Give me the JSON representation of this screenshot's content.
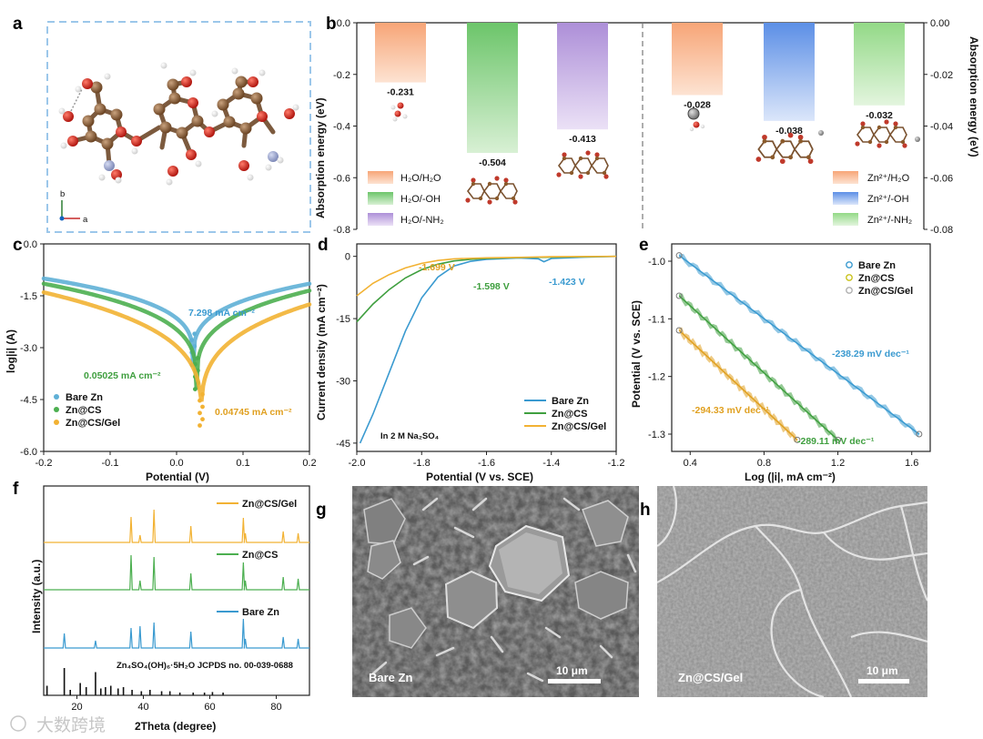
{
  "panels": {
    "a": "a",
    "b": "b",
    "c": "c",
    "d": "d",
    "e": "e",
    "f": "f",
    "g": "g",
    "h": "h"
  },
  "watermark": "大数跨境",
  "chart_data": [
    {
      "id": "a",
      "type": "other",
      "title": "Chitosan molecular structure (ball-and-stick)",
      "axes": [
        "b",
        "c",
        "a"
      ]
    },
    {
      "id": "b",
      "type": "bar",
      "ylabel_left": "Absorption energy (eV)",
      "ylabel_right": "Absorption energy (eV)",
      "ylim_left": [
        -0.8,
        0.0
      ],
      "yticks_left": [
        "0.0",
        "-0.2",
        "-0.4",
        "-0.6",
        "-0.8"
      ],
      "ylim_right": [
        -0.08,
        0.0
      ],
      "yticks_right": [
        "0.00",
        "-0.02",
        "-0.04",
        "-0.06",
        "-0.08"
      ],
      "left_series": [
        {
          "name": "H₂O/H₂O",
          "value": -0.231,
          "label": "-0.231",
          "color": "#f5b48a"
        },
        {
          "name": "H₂O/-OH",
          "value": -0.504,
          "label": "-0.504",
          "color": "#8fd08a"
        },
        {
          "name": "H₂O/-NH₂",
          "value": -0.413,
          "label": "-0.413",
          "color": "#c3aedf"
        }
      ],
      "right_series": [
        {
          "name": "Zn²⁺/H₂O",
          "value": -0.028,
          "label": "-0.028",
          "color": "#f5b48a"
        },
        {
          "name": "Zn²⁺/-OH",
          "value": -0.038,
          "label": "-0.038",
          "color": "#7aa6ea"
        },
        {
          "name": "Zn²⁺/-NH₂",
          "value": -0.032,
          "label": "-0.032",
          "color": "#a8dd98"
        }
      ],
      "legend_left": [
        "H₂O/H₂O",
        "H₂O/-OH",
        "H₂O/-NH₂"
      ],
      "legend_right": [
        "Zn²⁺/H₂O",
        "Zn²⁺/-OH",
        "Zn²⁺/-NH₂"
      ]
    },
    {
      "id": "c",
      "type": "scatter",
      "xlabel": "Potential (V)",
      "ylabel": "log|i| (A)",
      "xlim": [
        -0.2,
        0.2
      ],
      "ylim": [
        -6.0,
        0.0
      ],
      "xticks": [
        "-0.2",
        "-0.1",
        "0.0",
        "0.1",
        "0.2"
      ],
      "yticks": [
        "0.0",
        "-1.5",
        "-3.0",
        "-4.5",
        "-6.0"
      ],
      "series": [
        {
          "name": "Bare Zn",
          "color": "#5fb0d6",
          "ecorr": 0.025,
          "ends": [
            -1.0,
            -1.15
          ],
          "min": -3.5
        },
        {
          "name": "Zn@CS",
          "color": "#4caf50",
          "ecorr": 0.03,
          "ends": [
            -1.15,
            -1.35
          ],
          "min": -4.2
        },
        {
          "name": "Zn@CS/Gel",
          "color": "#f2b233",
          "ecorr": 0.037,
          "ends": [
            -1.4,
            -1.75
          ],
          "min": -5.25
        }
      ],
      "annotations": [
        {
          "text": "7.298 mA cm⁻²",
          "color": "#3a9ad0"
        },
        {
          "text": "0.05025 mA cm⁻²",
          "color": "#3f9f3f"
        },
        {
          "text": "0.04745 mA cm⁻²",
          "color": "#e0a020"
        }
      ]
    },
    {
      "id": "d",
      "type": "line",
      "xlabel": "Potential (V vs. SCE)",
      "ylabel": "Current density (mA cm⁻²)",
      "xlim": [
        -2.0,
        -1.2
      ],
      "ylim": [
        -47,
        3
      ],
      "xticks": [
        "-2.0",
        "-1.8",
        "-1.6",
        "-1.4",
        "-1.2"
      ],
      "yticks": [
        "0",
        "-15",
        "-30",
        "-45"
      ],
      "series": [
        {
          "name": "Bare Zn",
          "color": "#3a9ad0",
          "points": [
            [
              -1.99,
              -45
            ],
            [
              -1.95,
              -38
            ],
            [
              -1.9,
              -28
            ],
            [
              -1.85,
              -18
            ],
            [
              -1.8,
              -10
            ],
            [
              -1.75,
              -5
            ],
            [
              -1.7,
              -2.3
            ],
            [
              -1.65,
              -1.2
            ],
            [
              -1.6,
              -0.7
            ],
            [
              -1.5,
              -0.4
            ],
            [
              -1.44,
              -0.6
            ],
            [
              -1.423,
              -1.3
            ],
            [
              -1.4,
              -0.5
            ],
            [
              -1.3,
              -0.2
            ],
            [
              -1.2,
              0
            ]
          ]
        },
        {
          "name": "Zn@CS",
          "color": "#3f9f3f",
          "points": [
            [
              -2.0,
              -15.8
            ],
            [
              -1.95,
              -11.5
            ],
            [
              -1.9,
              -8
            ],
            [
              -1.85,
              -5.2
            ],
            [
              -1.8,
              -3.2
            ],
            [
              -1.75,
              -1.9
            ],
            [
              -1.7,
              -1.1
            ],
            [
              -1.65,
              -0.7
            ],
            [
              -1.598,
              -0.5
            ],
            [
              -1.5,
              -0.3
            ],
            [
              -1.4,
              -0.2
            ],
            [
              -1.2,
              0
            ]
          ]
        },
        {
          "name": "Zn@CS/Gel",
          "color": "#f2b233",
          "points": [
            [
              -2.0,
              -9.5
            ],
            [
              -1.95,
              -6.5
            ],
            [
              -1.9,
              -4.4
            ],
            [
              -1.85,
              -2.8
            ],
            [
              -1.8,
              -1.7
            ],
            [
              -1.75,
              -1.0
            ],
            [
              -1.699,
              -0.6
            ],
            [
              -1.6,
              -0.35
            ],
            [
              -1.5,
              -0.25
            ],
            [
              -1.4,
              -0.1
            ],
            [
              -1.2,
              0
            ]
          ]
        }
      ],
      "annotations": [
        {
          "text": "-1.699 V",
          "color": "#e0a020"
        },
        {
          "text": "-1.598 V",
          "color": "#3f9f3f"
        },
        {
          "text": "-1.423 V",
          "color": "#3a9ad0"
        }
      ],
      "note": "In 2 M Na₂SO₄"
    },
    {
      "id": "e",
      "type": "scatter",
      "xlabel": "Log (|i|, mA cm⁻²)",
      "ylabel": "Potential (V vs. SCE)",
      "xlim": [
        0.3,
        1.7
      ],
      "ylim": [
        -1.33,
        -0.97
      ],
      "xticks": [
        "0.4",
        "0.8",
        "1.2",
        "1.6"
      ],
      "yticks": [
        "-1.0",
        "-1.1",
        "-1.2",
        "-1.3"
      ],
      "series": [
        {
          "name": "Bare Zn",
          "color": "#3a9ad0",
          "x": [
            0.34,
            1.64
          ],
          "y": [
            -0.99,
            -1.3
          ],
          "slope_label": "-238.29 mV dec⁻¹"
        },
        {
          "name": "Zn@CS",
          "color": "#3f9f3f",
          "x": [
            0.34,
            1.2
          ],
          "y": [
            -1.06,
            -1.31
          ],
          "slope_label": "-289.11 mV dec⁻¹"
        },
        {
          "name": "Zn@CS/Gel",
          "color": "#e0a020",
          "x": [
            0.34,
            0.98
          ],
          "y": [
            -1.12,
            -1.31
          ],
          "slope_label": "-294.33 mV dec⁻¹"
        }
      ],
      "legend_markers": [
        "#3a9ad0",
        "#c9c21a",
        "#b0b0b0"
      ]
    },
    {
      "id": "f",
      "type": "line",
      "xlabel": "2Theta (degree)",
      "ylabel": "Intensity (a.u.)",
      "xlim": [
        10,
        90
      ],
      "xticks": [
        "20",
        "40",
        "60",
        "80"
      ],
      "series": [
        {
          "name": "Zn@CS/Gel",
          "color": "#f2b233"
        },
        {
          "name": "Zn@CS",
          "color": "#4caf50"
        },
        {
          "name": "Bare Zn",
          "color": "#3a9ad0"
        }
      ],
      "peaks": [
        36.3,
        39.0,
        43.2,
        54.3,
        70.1,
        70.7,
        82.1,
        86.6
      ],
      "reference": "Zn₄SO₄(OH)₆·5H₂O JCPDS no. 00-039-0688",
      "reference_peaks": [
        [
          11.0,
          0.35
        ],
        [
          16.2,
          1.0
        ],
        [
          18.0,
          0.2
        ],
        [
          21.0,
          0.45
        ],
        [
          22.8,
          0.3
        ],
        [
          25.6,
          0.85
        ],
        [
          27.2,
          0.25
        ],
        [
          28.6,
          0.3
        ],
        [
          30.2,
          0.35
        ],
        [
          32.4,
          0.25
        ],
        [
          34.0,
          0.3
        ],
        [
          36.6,
          0.2
        ],
        [
          39.4,
          0.15
        ],
        [
          42.0,
          0.2
        ],
        [
          45.5,
          0.15
        ],
        [
          48.0,
          0.15
        ],
        [
          51.0,
          0.1
        ],
        [
          55.0,
          0.1
        ],
        [
          58.4,
          0.1
        ],
        [
          60.8,
          0.12
        ],
        [
          64.0,
          0.1
        ]
      ]
    },
    {
      "id": "g",
      "type": "other",
      "title": "SEM image",
      "label": "Bare Zn",
      "scale": "10 μm"
    },
    {
      "id": "h",
      "type": "other",
      "title": "SEM image",
      "label": "Zn@CS/Gel",
      "scale": "10 μm"
    }
  ]
}
